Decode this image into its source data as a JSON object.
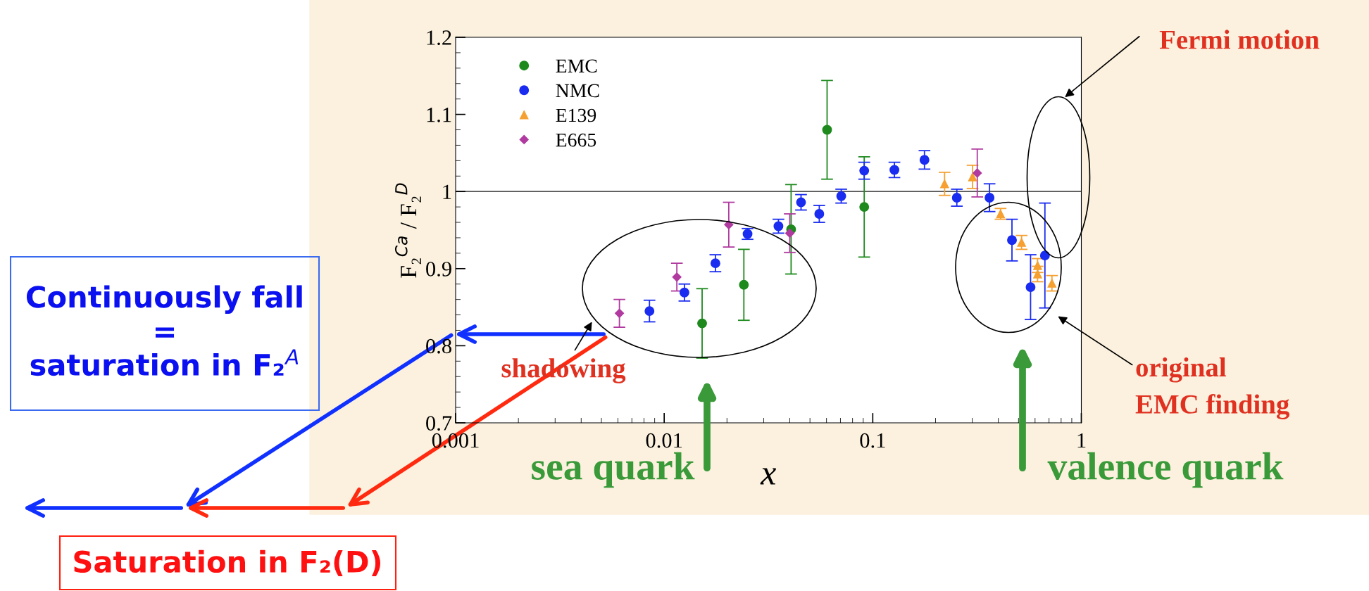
{
  "chart_data": {
    "type": "scatter",
    "xlabel": "x",
    "ylabel": "F₂$^{Ca}$ / F₂$^{D}$",
    "log": "x",
    "xlim": [
      0.001,
      1
    ],
    "xticks": [
      0.001,
      0.01,
      0.1,
      1
    ],
    "ylim": [
      0.7,
      1.2
    ],
    "yticks": [
      0.7,
      0.8,
      0.9,
      1,
      1.1,
      1.2
    ],
    "legend": "top left",
    "grid": false,
    "ref_lines": [
      {
        "axis": "y",
        "value": 1,
        "color": "#555555"
      }
    ],
    "series": [
      {
        "name": "EMC",
        "color": "#1e8a1e",
        "marker": "circle",
        "x": [
          0.0152,
          0.0241,
          0.0406,
          0.0604,
          0.091
        ],
        "values": [
          0.829,
          0.879,
          0.951,
          1.08,
          0.98
        ],
        "errors": [
          0.045,
          0.046,
          0.058,
          0.064,
          0.065
        ]
      },
      {
        "name": "NMC",
        "color": "#1a2cf0",
        "marker": "circle",
        "x": [
          0.0085,
          0.0125,
          0.0176,
          0.0251,
          0.0353,
          0.0453,
          0.0554,
          0.0706,
          0.091,
          0.127,
          0.177,
          0.253,
          0.363,
          0.465,
          0.571,
          0.669
        ],
        "values": [
          0.845,
          0.869,
          0.907,
          0.945,
          0.955,
          0.986,
          0.971,
          0.994,
          1.027,
          1.028,
          1.041,
          0.992,
          0.992,
          0.937,
          0.876,
          0.917
        ],
        "errors": [
          0.014,
          0.011,
          0.011,
          0.007,
          0.009,
          0.01,
          0.011,
          0.009,
          0.011,
          0.01,
          0.012,
          0.011,
          0.018,
          0.027,
          0.042,
          0.068
        ]
      },
      {
        "name": "E139",
        "color": "#f5a030",
        "marker": "triangle",
        "x": [
          0.221,
          0.301,
          0.41,
          0.517,
          0.617,
          0.617,
          0.723
        ],
        "values": [
          1.01,
          1.019,
          0.971,
          0.934,
          0.904,
          0.893,
          0.881
        ],
        "errors": [
          0.015,
          0.015,
          0.007,
          0.009,
          0.009,
          0.01,
          0.01
        ]
      },
      {
        "name": "E665",
        "color": "#b03aa0",
        "marker": "diamond",
        "x": [
          0.0061,
          0.0115,
          0.0204,
          0.04,
          0.317
        ],
        "values": [
          0.842,
          0.889,
          0.957,
          0.946,
          1.024
        ],
        "errors": [
          0.018,
          0.018,
          0.029,
          0.025,
          0.031
        ]
      }
    ],
    "annotations": [
      "shadowing",
      "sea quark",
      "valence quark",
      "Fermi motion",
      "original\nEMC finding",
      "Continuously fall\n=\nsaturation in F₂$^{A}$",
      "Saturation in F₂(D)"
    ]
  }
}
